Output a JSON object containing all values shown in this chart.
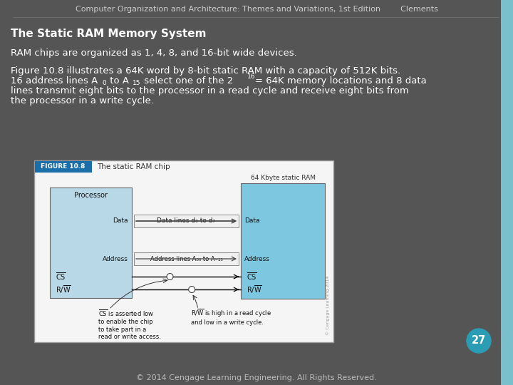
{
  "background_color": "#555555",
  "sidebar_color": "#7abfcc",
  "header_text_left": "Computer Organization and Architecture: Themes and Variations, 1st Edition",
  "header_text_right": "Clements",
  "header_color": "#cccccc",
  "header_fontsize": 8,
  "title_text": "The Static RAM Memory System",
  "title_color": "#ffffff",
  "title_fontsize": 11,
  "line1": "RAM chips are organized as 1, 4, 8, and 16-bit wide devices.",
  "line2a": "Figure 10.8 illustrates a 64K word by 8-bit static RAM with a capacity of 512K bits.",
  "line2b": "16 address lines A",
  "line2b_sub0": "0",
  "line2b_mid": " to A",
  "line2b_sub15": "15",
  "line2b_end": " select one of the 2",
  "line2b_sup16": "16",
  "line2b_tail": " = 64K memory locations and 8 data",
  "line2c": "lines transmit eight bits to the processor in a read cycle and receive eight bits from",
  "line2d": "the processor in a write cycle.",
  "body_color": "#ffffff",
  "body_fontsize": 9.5,
  "figure_label": "FIGURE 10.8",
  "figure_title": "The static RAM chip",
  "figure_bg": "#f5f5f5",
  "figure_border_color": "#888888",
  "figure_label_bg": "#1a6faa",
  "figure_label_color": "#ffffff",
  "processor_box_color": "#b8d8e8",
  "ram_box_color": "#7dc8e0",
  "ram_label": "64 Kbyte static RAM",
  "footer_text": "© 2014 Cengage Learning Engineering. All Rights Reserved.",
  "footer_color": "#bbbbbb",
  "footer_fontsize": 8,
  "page_number": "27",
  "page_num_bg": "#2a9db5",
  "page_num_color": "#ffffff"
}
